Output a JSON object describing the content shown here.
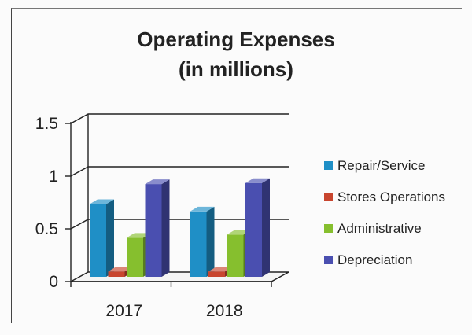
{
  "chart_data": {
    "type": "bar",
    "title_line1": "Operating Expenses",
    "title_line2": "(in millions)",
    "categories": [
      "2017",
      "2018"
    ],
    "series": [
      {
        "name": "Repair/Service",
        "values": [
          0.69,
          0.62
        ],
        "color": "#1f8fc6"
      },
      {
        "name": "Stores Operations",
        "values": [
          0.05,
          0.05
        ],
        "color": "#c8452e"
      },
      {
        "name": "Administrative",
        "values": [
          0.37,
          0.4
        ],
        "color": "#86bf2e"
      },
      {
        "name": "Depreciation",
        "values": [
          0.88,
          0.89
        ],
        "color": "#4a4fb0"
      }
    ],
    "y_ticks": [
      "1.5",
      "1",
      "0.5",
      "0"
    ],
    "ylim": [
      0,
      1.5
    ],
    "grid": true,
    "legend_position": "right"
  }
}
